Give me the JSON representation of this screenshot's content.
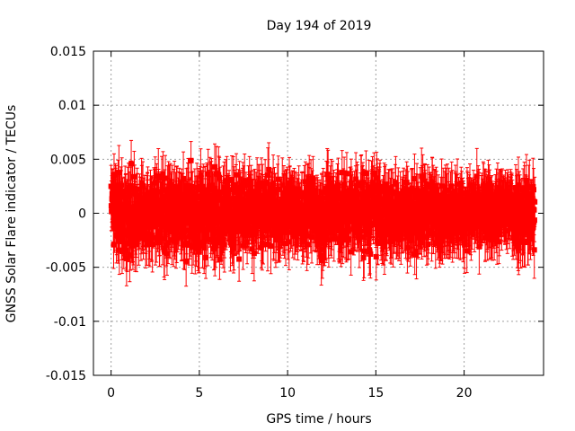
{
  "chart_data": {
    "type": "scatter",
    "title": "Day 194 of 2019",
    "xlabel": "GPS time / hours",
    "ylabel": "GNSS Solar Flare indicator / TECUs",
    "xlim": [
      -1,
      24.5
    ],
    "ylim": [
      -0.015,
      0.015
    ],
    "x_ticks": [
      0,
      5,
      10,
      15,
      20
    ],
    "y_ticks": [
      -0.015,
      -0.01,
      -0.005,
      0,
      0.005,
      0.01,
      0.015
    ],
    "x_tick_labels": [
      "0",
      "5",
      "10",
      "15",
      "20"
    ],
    "y_tick_labels": [
      "-0.015",
      "-0.01",
      "-0.005",
      "0",
      "0.005",
      "0.01",
      "0.015"
    ],
    "grid": true,
    "series_color": "#ff0000",
    "marker": "square",
    "error_bars": true,
    "series": [
      {
        "name": "",
        "x": [
          0.0,
          0.5,
          1.0,
          1.5,
          2.0,
          2.5,
          3.0,
          3.5,
          4.0,
          4.5,
          5.0,
          5.5,
          6.0,
          6.5,
          7.0,
          7.5,
          8.0,
          8.5,
          9.0,
          9.5,
          10.0,
          10.5,
          11.0,
          11.5,
          12.0,
          12.5,
          13.0,
          13.5,
          14.0,
          14.5,
          15.0,
          15.5,
          16.0,
          16.5,
          17.0,
          17.5,
          18.0,
          18.5,
          19.0,
          19.5,
          20.0,
          20.5,
          21.0,
          21.5,
          22.0,
          22.5,
          23.0,
          23.5,
          24.0
        ],
        "y": [
          0.0,
          0.0005,
          -0.0005,
          0.0003,
          -0.0002,
          0.0004,
          -0.0003,
          0.0002,
          0.0,
          -0.0004,
          0.0003,
          0.0001,
          -0.0002,
          0.0004,
          -0.0001,
          0.0002,
          -0.0003,
          0.0001,
          0.0002,
          -0.0002,
          0.0003,
          -0.0001,
          0.0,
          0.0002,
          -0.0003,
          0.0004,
          -0.0002,
          0.0001,
          0.0003,
          -0.0001,
          0.0002,
          -0.0003,
          0.0,
          0.0002,
          -0.0002,
          0.0001,
          0.0003,
          -0.0001,
          0.0,
          0.0002,
          -0.0001,
          0.0,
          0.0002,
          -0.0002,
          0.0001,
          0.0003,
          -0.0001,
          0.0002,
          0.0
        ],
        "y_spread": [
          0.0065,
          0.0075,
          0.0085,
          0.0075,
          0.007,
          0.0072,
          0.0075,
          0.0065,
          0.0068,
          0.0078,
          0.0082,
          0.0075,
          0.0082,
          0.0075,
          0.0073,
          0.0072,
          0.0068,
          0.007,
          0.0062,
          0.0065,
          0.0058,
          0.0057,
          0.006,
          0.0065,
          0.0075,
          0.0085,
          0.0075,
          0.007,
          0.0072,
          0.008,
          0.0075,
          0.0068,
          0.0065,
          0.0062,
          0.0065,
          0.0063,
          0.0062,
          0.0058,
          0.0055,
          0.0058,
          0.0052,
          0.0053,
          0.0055,
          0.0058,
          0.0055,
          0.006,
          0.0065,
          0.0072,
          0.0075
        ],
        "error": 0.0022
      }
    ]
  }
}
